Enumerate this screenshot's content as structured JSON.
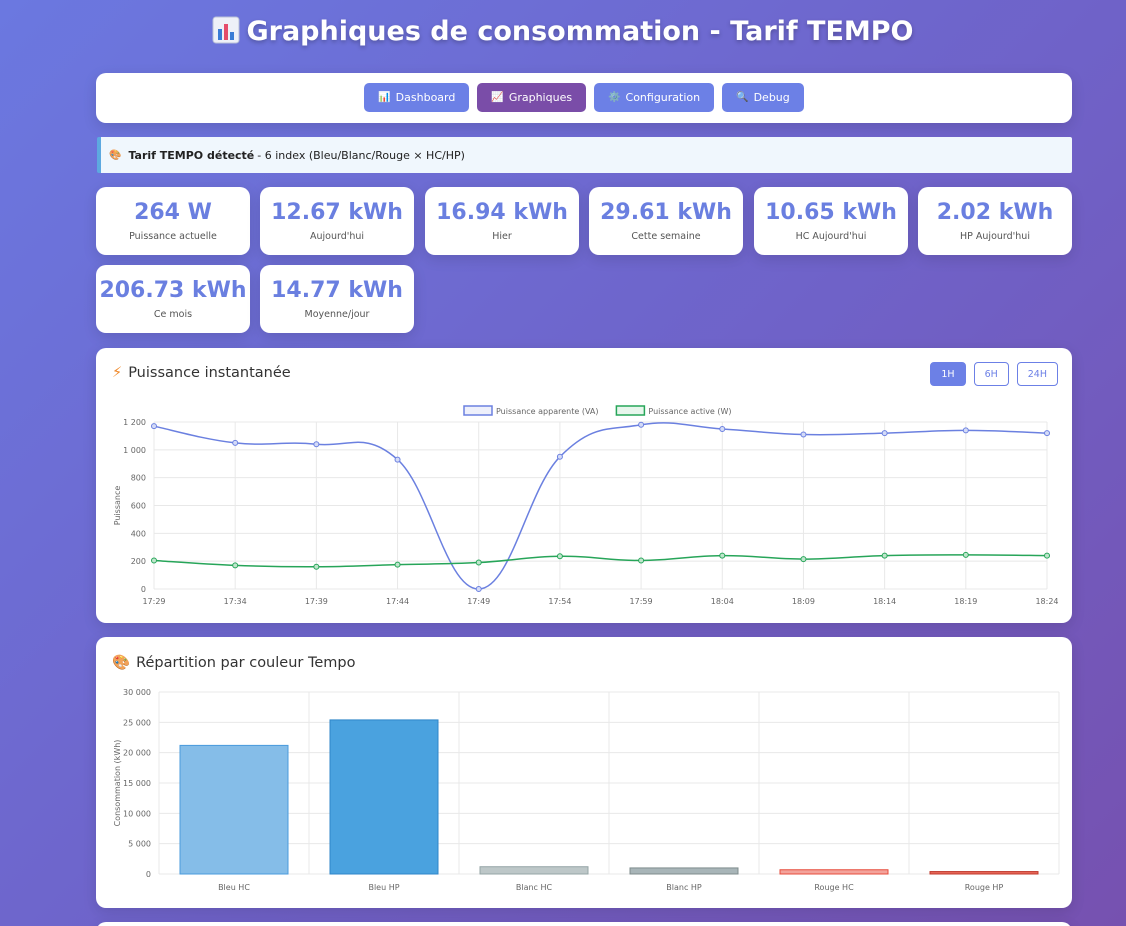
{
  "header": {
    "title": "Graphiques de consommation - Tarif TEMPO"
  },
  "nav": {
    "items": [
      {
        "label": "Dashboard",
        "icon": "chart-icon"
      },
      {
        "label": "Graphiques",
        "icon": "trend-icon",
        "active": true
      },
      {
        "label": "Configuration",
        "icon": "gear-icon"
      },
      {
        "label": "Debug",
        "icon": "magnifier-icon"
      }
    ]
  },
  "banner": {
    "strong": "Tarif TEMPO détecté",
    "rest": "- 6 index (Bleu/Blanc/Rouge × HC/HP)"
  },
  "stats": [
    {
      "value": "264 W",
      "label": "Puissance actuelle"
    },
    {
      "value": "12.67 kWh",
      "label": "Aujourd'hui"
    },
    {
      "value": "16.94 kWh",
      "label": "Hier"
    },
    {
      "value": "29.61 kWh",
      "label": "Cette semaine"
    },
    {
      "value": "10.65 kWh",
      "label": "HC Aujourd'hui"
    },
    {
      "value": "2.02 kWh",
      "label": "HP Aujourd'hui"
    },
    {
      "value": "206.73 kWh",
      "label": "Ce mois"
    },
    {
      "value": "14.77 kWh",
      "label": "Moyenne/jour"
    }
  ],
  "power_section": {
    "title": "Puissance instantanée",
    "ranges": [
      "1H",
      "6H",
      "24H"
    ],
    "active_range": "1H"
  },
  "tempo_section": {
    "title": "Répartition par couleur Tempo"
  },
  "colors": {
    "apparent": "#6b80e0",
    "active": "#27a559",
    "bleu_hc": "#85bde8",
    "bleu_hp": "#4aa2df",
    "blanc_hc": "#bdc7c8",
    "blanc_hp": "#a8b5b8",
    "rouge_hc": "#f3a39b",
    "rouge_hp": "#e8675a"
  },
  "chart_data": [
    {
      "type": "line",
      "ylabel": "Puissance",
      "x": [
        "17:29",
        "17:34",
        "17:39",
        "17:44",
        "17:49",
        "17:54",
        "17:59",
        "18:04",
        "18:09",
        "18:14",
        "18:19",
        "18:24"
      ],
      "ylim": [
        0,
        1200
      ],
      "yticks": [
        "0",
        "200",
        "400",
        "600",
        "800",
        "1 000",
        "1 200"
      ],
      "legend": "top",
      "grid": true,
      "series": [
        {
          "name": "Puissance apparente (VA)",
          "values": [
            1170,
            1050,
            1040,
            930,
            0,
            950,
            1180,
            1150,
            1110,
            1120,
            1140,
            1120
          ]
        },
        {
          "name": "Puissance active (W)",
          "values": [
            205,
            170,
            160,
            175,
            190,
            235,
            205,
            240,
            215,
            240,
            245,
            240
          ]
        }
      ]
    },
    {
      "type": "bar",
      "ylabel": "Consommation (kWh)",
      "categories": [
        "Bleu HC",
        "Bleu HP",
        "Blanc HC",
        "Blanc HP",
        "Rouge HC",
        "Rouge HP"
      ],
      "values": [
        21200,
        25400,
        1200,
        1000,
        700,
        400
      ],
      "ylim": [
        0,
        30000
      ],
      "yticks": [
        "0",
        "5 000",
        "10 000",
        "15 000",
        "20 000",
        "25 000",
        "30 000"
      ],
      "grid": true
    }
  ]
}
